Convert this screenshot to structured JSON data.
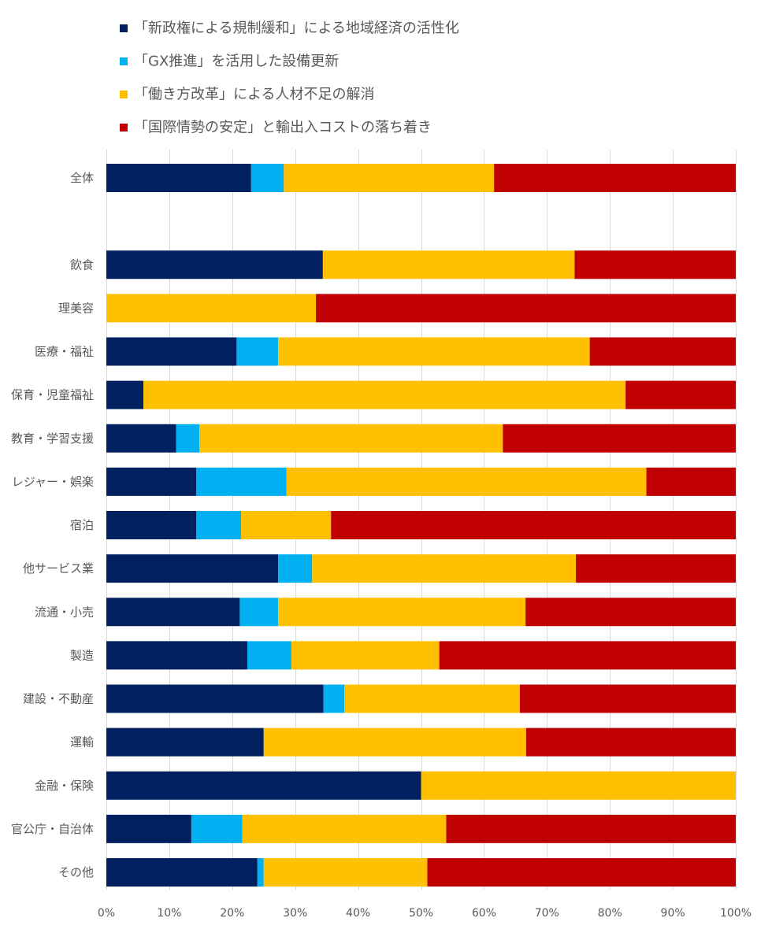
{
  "chart_data": {
    "type": "bar",
    "orientation": "horizontal",
    "stacked": "percent",
    "categories": [
      "全体",
      "",
      "飲食",
      "理美容",
      "医療・福祉",
      "保育・児童福祉",
      "教育・学習支援",
      "レジャー・娯楽",
      "宿泊",
      "他サービス業",
      "流通・小売",
      "製造",
      "建設・不動産",
      "運輸",
      "金融・保険",
      "官公庁・自治体",
      "その他"
    ],
    "series": [
      {
        "name": "「新政権による規制緩和」による地域経済の活性化",
        "color": "#002060",
        "values": [
          23,
          null,
          34.4,
          0,
          20.7,
          5.9,
          11.1,
          14.3,
          14.3,
          27.3,
          21.2,
          22.4,
          34.5,
          25,
          50,
          13.5,
          24
        ]
      },
      {
        "name": "「GX推進」を活用した設備更新",
        "color": "#00b0f0",
        "values": [
          5.2,
          null,
          0,
          0,
          6.6,
          0,
          3.7,
          14.3,
          7.1,
          5.4,
          6.1,
          7,
          3.3,
          0,
          0,
          8.1,
          1
        ]
      },
      {
        "name": "「働き方改革」による人材不足の解消",
        "color": "#ffc000",
        "values": [
          33.4,
          null,
          40,
          33.3,
          49.5,
          76.6,
          48.2,
          57.2,
          14.3,
          41.9,
          39.3,
          23.5,
          27.9,
          41.7,
          50,
          32.4,
          26
        ]
      },
      {
        "name": "「国際情勢の安定」と輸出入コストの落ち着き",
        "color": "#c00000",
        "values": [
          38.4,
          null,
          25.6,
          66.7,
          23.2,
          17.5,
          37,
          14.2,
          64.3,
          25.4,
          33.4,
          47.1,
          34.3,
          33.3,
          0,
          46,
          49
        ]
      }
    ],
    "xlim": [
      0,
      100
    ],
    "xticks": [
      "0%",
      "10%",
      "20%",
      "30%",
      "40%",
      "50%",
      "60%",
      "70%",
      "80%",
      "90%",
      "100%"
    ],
    "grid": true,
    "legend": "top"
  }
}
